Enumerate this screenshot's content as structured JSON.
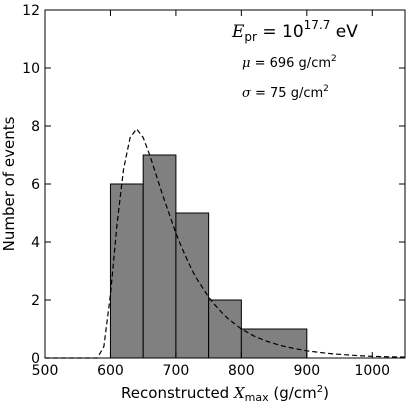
{
  "chart_data": {
    "type": "histogram",
    "title": "",
    "xlabel_text": "Reconstructed ",
    "xlabel_var": "X",
    "xlabel_sub": "max",
    "xlabel_unit_open": " (g/cm",
    "xlabel_unit_sup": "2",
    "xlabel_unit_close": ")",
    "ylabel": "Number of events",
    "xlim": [
      500,
      1050
    ],
    "ylim": [
      0,
      12
    ],
    "xticks": [
      500,
      600,
      700,
      800,
      900,
      1000
    ],
    "yticks": [
      0,
      2,
      4,
      6,
      8,
      10,
      12
    ],
    "grid": false,
    "bins": [
      {
        "x0": 600,
        "x1": 650,
        "count": 6
      },
      {
        "x0": 650,
        "x1": 700,
        "count": 7
      },
      {
        "x0": 700,
        "x1": 750,
        "count": 5
      },
      {
        "x0": 750,
        "x1": 800,
        "count": 2
      },
      {
        "x0": 800,
        "x1": 900,
        "count": 1
      }
    ],
    "fit_curve": {
      "style": "dashed",
      "points": [
        [
          500,
          0
        ],
        [
          580,
          0
        ],
        [
          590,
          0.4
        ],
        [
          600,
          2.2
        ],
        [
          610,
          4.6
        ],
        [
          620,
          6.5
        ],
        [
          630,
          7.6
        ],
        [
          640,
          7.9
        ],
        [
          650,
          7.6
        ],
        [
          660,
          7.0
        ],
        [
          670,
          6.3
        ],
        [
          680,
          5.6
        ],
        [
          690,
          4.95
        ],
        [
          700,
          4.3
        ],
        [
          710,
          3.75
        ],
        [
          720,
          3.25
        ],
        [
          730,
          2.8
        ],
        [
          740,
          2.45
        ],
        [
          750,
          2.1
        ],
        [
          760,
          1.82
        ],
        [
          770,
          1.57
        ],
        [
          780,
          1.35
        ],
        [
          800,
          1.0
        ],
        [
          820,
          0.75
        ],
        [
          840,
          0.57
        ],
        [
          860,
          0.43
        ],
        [
          880,
          0.33
        ],
        [
          900,
          0.25
        ],
        [
          920,
          0.19
        ],
        [
          940,
          0.14
        ],
        [
          960,
          0.11
        ],
        [
          980,
          0.08
        ],
        [
          1000,
          0.06
        ],
        [
          1025,
          0.04
        ],
        [
          1050,
          0.03
        ]
      ]
    },
    "annotations": {
      "energy_var": "E",
      "energy_sub": "pr",
      "energy_eq": " = 10",
      "energy_exp": "17.7",
      "energy_unit": " eV",
      "mu_var": "μ",
      "mu_eq": " = 696 g/cm",
      "mu_sup": "2",
      "sigma_var": "σ",
      "sigma_eq": " = 75 g/cm",
      "sigma_sup": "2"
    },
    "colors": {
      "bar_fill": "#808080",
      "bar_edge": "#000000",
      "curve": "#000000",
      "axes": "#000000"
    }
  }
}
